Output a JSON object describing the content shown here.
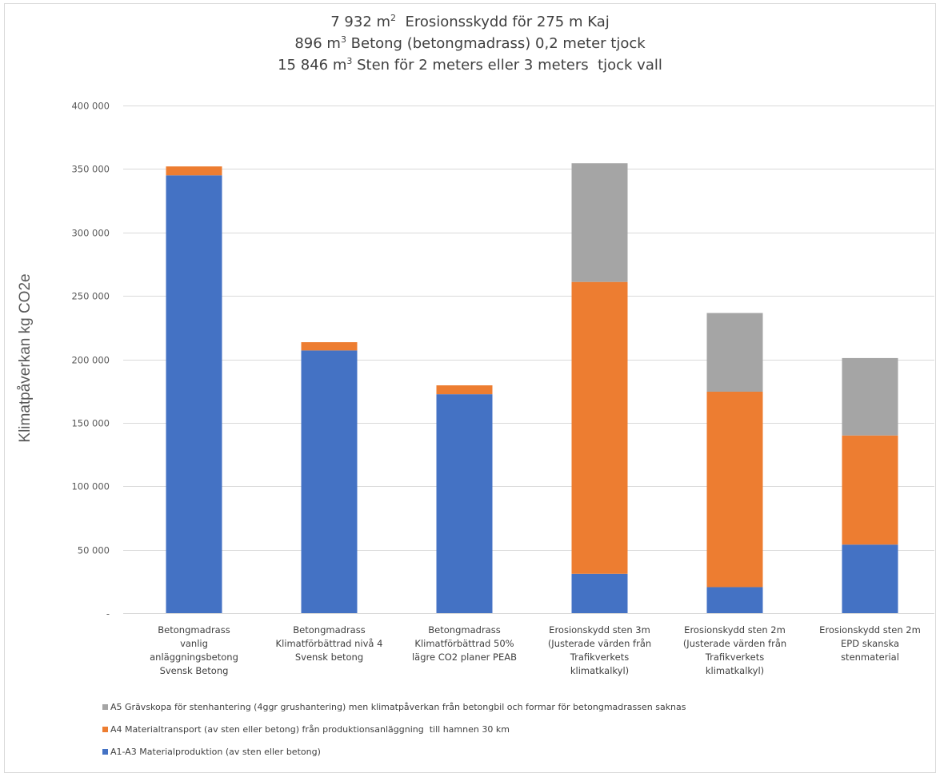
{
  "chart_data": {
    "type": "bar",
    "stacked": true,
    "title_lines": [
      {
        "pre": "7 932 m",
        "sup": "2",
        "post": "  Erosionsskydd för 275 m Kaj"
      },
      {
        "pre": "896 m",
        "sup": "3",
        "post": " Betong (betongmadrass) 0,2 meter tjock"
      },
      {
        "pre": "15 846 m",
        "sup": "3",
        "post": " Sten för 2 meters eller 3 meters  tjock vall"
      }
    ],
    "ylabel": "Klimatpåverkan kg CO2e",
    "ylim": [
      0,
      400000
    ],
    "yticks": [
      {
        "value": 0,
        "label": "-"
      },
      {
        "value": 50000,
        "label": "50 000"
      },
      {
        "value": 100000,
        "label": "100 000"
      },
      {
        "value": 150000,
        "label": "150 000"
      },
      {
        "value": 200000,
        "label": "200 000"
      },
      {
        "value": 250000,
        "label": "250 000"
      },
      {
        "value": 300000,
        "label": "300 000"
      },
      {
        "value": 350000,
        "label": "350 000"
      },
      {
        "value": 400000,
        "label": "400 000"
      }
    ],
    "grid": true,
    "legend_position": "bottom",
    "categories": [
      [
        "Betongmadrass",
        "vanlig",
        "anläggningsbetong",
        "Svensk Betong"
      ],
      [
        "Betongmadrass",
        "Klimatförbättrad nivå 4",
        "Svensk betong"
      ],
      [
        "Betongmadrass",
        "Klimatförbättrad 50%",
        "lägre CO2 planer PEAB"
      ],
      [
        "Erosionskydd sten 3m",
        "(Justerade värden från",
        "Trafikverkets",
        "klimatkalkyl)"
      ],
      [
        "Erosionskydd sten 2m",
        "(Justerade värden från",
        "Trafikverkets",
        "klimatkalkyl)"
      ],
      [
        "Erosionskydd sten 2m",
        "EPD skanska",
        "stenmaterial"
      ]
    ],
    "series": [
      {
        "name": "A1-A3 Materialproduktion (av sten eller betong)",
        "color": "#4472c4",
        "values": [
          345000,
          207000,
          172500,
          31000,
          20500,
          54000
        ]
      },
      {
        "name": "A4 Materialtransport (av sten eller betong) från produktionsanläggning  till hamnen 30 km",
        "color": "#ed7d31",
        "values": [
          7000,
          6500,
          7000,
          230000,
          154000,
          86000
        ]
      },
      {
        "name": "A5 Grävskopa för stenhantering (4ggr grushantering) men klimatpåverkan från betongbil och formar för betongmadrassen saknas",
        "color": "#a5a5a5",
        "values": [
          0,
          0,
          0,
          93500,
          62000,
          61000
        ]
      }
    ]
  }
}
